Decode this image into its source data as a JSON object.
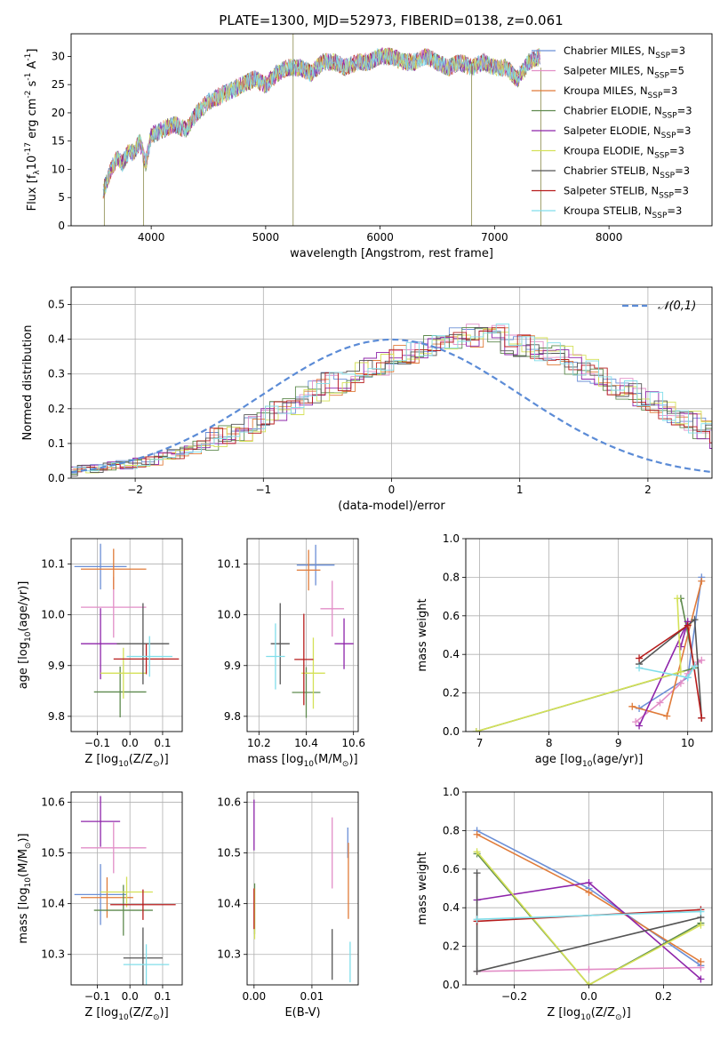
{
  "figure": {
    "title": "PLATE=1300, MJD=52973, FIBERID=0138, z=0.061"
  },
  "chart_data": [
    {
      "type": "line",
      "panel": "spectrum",
      "xlabel": "wavelength [Angstrom, rest frame]",
      "ylabel": "Flux [f$_\\lambda$10$^{-17}$ erg cm$^{-2}$ s$^{-1}$ A$^{-1}$]",
      "xlim": [
        3300,
        8900
      ],
      "ylim": [
        0,
        34
      ],
      "xticks": [
        4000,
        5000,
        6000,
        7000,
        8000
      ],
      "yticks": [
        0,
        5,
        10,
        15,
        20,
        25,
        30
      ],
      "grid": false,
      "legend": "upper-right",
      "envelope": {
        "x": [
          3580,
          3650,
          3700,
          3750,
          3800,
          3850,
          3900,
          3950,
          4000,
          4100,
          4200,
          4300,
          4400,
          4500,
          4600,
          4700,
          4800,
          4900,
          5000,
          5100,
          5200,
          5300,
          5400,
          5500,
          5600,
          5700,
          5800,
          5900,
          6000,
          6100,
          6200,
          6300,
          6400,
          6500,
          6600,
          6700,
          6800,
          6900,
          7000,
          7100,
          7200,
          7300,
          7400
        ],
        "y": [
          6,
          10,
          12,
          11,
          13,
          13,
          15,
          11,
          16,
          17,
          18,
          17,
          20,
          22,
          23,
          24,
          25,
          26,
          25,
          27,
          28,
          28,
          27,
          29,
          29,
          28,
          29,
          29,
          30,
          30,
          29,
          29,
          30,
          29,
          28,
          29,
          28,
          29,
          28,
          28,
          26,
          29,
          30
        ]
      },
      "series": [
        {
          "name": "Chabrier MILES, N$_{SSP}$=3",
          "color": "#6b8fd6"
        },
        {
          "name": "Salpeter MILES, N$_{SSP}$=5",
          "color": "#e28ec7"
        },
        {
          "name": "Kroupa MILES, N$_{SSP}$=3",
          "color": "#e07b39"
        },
        {
          "name": "Chabrier ELODIE, N$_{SSP}$=3",
          "color": "#5e8a4e"
        },
        {
          "name": "Salpeter ELODIE, N$_{SSP}$=3",
          "color": "#8e24aa"
        },
        {
          "name": "Kroupa ELODIE, N$_{SSP}$=3",
          "color": "#d4e157"
        },
        {
          "name": "Chabrier STELIB, N$_{SSP}$=3",
          "color": "#555555"
        },
        {
          "name": "Salpeter STELIB, N$_{SSP}$=3",
          "color": "#b71c1c"
        },
        {
          "name": "Kroupa STELIB, N$_{SSP}$=3",
          "color": "#80deea"
        }
      ]
    },
    {
      "type": "line",
      "panel": "residual-histogram",
      "xlabel": "(data-model)/error",
      "ylabel": "Normed distribution",
      "xlim": [
        -2.5,
        2.5
      ],
      "ylim": [
        0,
        0.55
      ],
      "xticks": [
        -2,
        -1,
        0,
        1,
        2
      ],
      "yticks": [
        0.0,
        0.1,
        0.2,
        0.3,
        0.4,
        0.5
      ],
      "grid": true,
      "legend": "upper-right",
      "reference": {
        "name": "$\\mathcal{N}(0,1)$",
        "mean": 0,
        "sigma": 1,
        "color": "#5b8bd6"
      },
      "bin_width": 0.1,
      "base_values": [
        0.02,
        0.025,
        0.03,
        0.035,
        0.04,
        0.045,
        0.05,
        0.06,
        0.07,
        0.08,
        0.095,
        0.11,
        0.12,
        0.14,
        0.16,
        0.18,
        0.19,
        0.21,
        0.23,
        0.25,
        0.27,
        0.28,
        0.3,
        0.32,
        0.33,
        0.35,
        0.36,
        0.37,
        0.38,
        0.39,
        0.4,
        0.41,
        0.4,
        0.41,
        0.39,
        0.38,
        0.37,
        0.36,
        0.35,
        0.33,
        0.31,
        0.29,
        0.27,
        0.26,
        0.24,
        0.22,
        0.2,
        0.18,
        0.16,
        0.14,
        0.12,
        0.11,
        0.09,
        0.08,
        0.07,
        0.06,
        0.05,
        0.045,
        0.04,
        0.035,
        0.03,
        0.025,
        0.02,
        0.02,
        0.015,
        0.015,
        0.012,
        0.01,
        0.01,
        0.008,
        0.007,
        0.006
      ]
    },
    {
      "type": "scatter",
      "panel": "age-vs-Z",
      "xlabel": "Z [log$_{10}$(Z/Z$_\\odot$)]",
      "ylabel": "age  [log$_{10}$(age/yr)]",
      "xlim": [
        -0.18,
        0.16
      ],
      "ylim": [
        9.77,
        10.15
      ],
      "xticks": [
        -0.1,
        0.0,
        0.1
      ],
      "yticks": [
        9.8,
        9.9,
        10.0,
        10.1
      ],
      "grid": true,
      "points": [
        {
          "series": 0,
          "x": -0.09,
          "y": 10.095,
          "xerr": 0.08,
          "yerr": 0.045
        },
        {
          "series": 1,
          "x": -0.05,
          "y": 10.015,
          "xerr": 0.1,
          "yerr": 0.06
        },
        {
          "series": 2,
          "x": -0.05,
          "y": 10.09,
          "xerr": 0.1,
          "yerr": 0.04
        },
        {
          "series": 3,
          "x": -0.03,
          "y": 9.848,
          "xerr": 0.08,
          "yerr": 0.05
        },
        {
          "series": 4,
          "x": -0.09,
          "y": 9.943,
          "xerr": 0.06,
          "yerr": 0.07
        },
        {
          "series": 5,
          "x": -0.02,
          "y": 9.885,
          "xerr": 0.07,
          "yerr": 0.05
        },
        {
          "series": 6,
          "x": 0.04,
          "y": 9.943,
          "xerr": 0.08,
          "yerr": 0.08
        },
        {
          "series": 7,
          "x": 0.05,
          "y": 9.913,
          "xerr": 0.1,
          "yerr": 0.03
        },
        {
          "series": 8,
          "x": 0.06,
          "y": 9.918,
          "xerr": 0.07,
          "yerr": 0.04
        }
      ]
    },
    {
      "type": "scatter",
      "panel": "age-vs-mass",
      "xlabel": "mass [log$_{10}$(M/M$_\\odot$)]",
      "ylabel": "",
      "xlim": [
        10.15,
        10.62
      ],
      "ylim": [
        9.77,
        10.15
      ],
      "xticks": [
        10.2,
        10.4,
        10.6
      ],
      "yticks": [
        9.8,
        9.9,
        10.0,
        10.1
      ],
      "grid": true,
      "points": [
        {
          "series": 0,
          "x": 10.44,
          "y": 10.098,
          "xerr": 0.08,
          "yerr": 0.04
        },
        {
          "series": 1,
          "x": 10.51,
          "y": 10.012,
          "xerr": 0.05,
          "yerr": 0.055
        },
        {
          "series": 2,
          "x": 10.41,
          "y": 10.088,
          "xerr": 0.05,
          "yerr": 0.04
        },
        {
          "series": 3,
          "x": 10.4,
          "y": 9.847,
          "xerr": 0.06,
          "yerr": 0.05
        },
        {
          "series": 4,
          "x": 10.56,
          "y": 9.943,
          "xerr": 0.04,
          "yerr": 0.05
        },
        {
          "series": 5,
          "x": 10.43,
          "y": 9.885,
          "xerr": 0.05,
          "yerr": 0.07
        },
        {
          "series": 6,
          "x": 10.29,
          "y": 9.943,
          "xerr": 0.04,
          "yerr": 0.08
        },
        {
          "series": 7,
          "x": 10.39,
          "y": 9.912,
          "xerr": 0.04,
          "yerr": 0.09
        },
        {
          "series": 8,
          "x": 10.27,
          "y": 9.918,
          "xerr": 0.04,
          "yerr": 0.065
        }
      ]
    },
    {
      "type": "line",
      "panel": "mass-weight-vs-age",
      "xlabel": "age  [log$_{10}$(age/yr)]",
      "ylabel": "mass weight",
      "xlim": [
        6.8,
        10.35
      ],
      "ylim": [
        0,
        1.0
      ],
      "xticks": [
        7,
        8,
        9,
        10
      ],
      "yticks": [
        0.0,
        0.2,
        0.4,
        0.6,
        0.8,
        1.0
      ],
      "grid": true,
      "series": [
        {
          "series": 0,
          "x": [
            9.3,
            10.0,
            10.2
          ],
          "y": [
            0.12,
            0.28,
            0.8
          ]
        },
        {
          "series": 1,
          "x": [
            9.25,
            9.6,
            9.9,
            10.0,
            10.15,
            10.2
          ],
          "y": [
            0.05,
            0.15,
            0.25,
            0.3,
            0.36,
            0.37
          ]
        },
        {
          "series": 2,
          "x": [
            9.2,
            9.7,
            10.2
          ],
          "y": [
            0.13,
            0.08,
            0.78
          ]
        },
        {
          "series": 3,
          "x": [
            6.95,
            10.1,
            9.9
          ],
          "y": [
            0.0,
            0.33,
            0.69
          ]
        },
        {
          "series": 4,
          "x": [
            9.3,
            10.0,
            9.9
          ],
          "y": [
            0.03,
            0.57,
            0.44
          ]
        },
        {
          "series": 5,
          "x": [
            6.95,
            9.9,
            9.85
          ],
          "y": [
            0.0,
            0.31,
            0.69
          ]
        },
        {
          "series": 6,
          "x": [
            9.3,
            10.1,
            10.2
          ],
          "y": [
            0.35,
            0.58,
            0.07
          ]
        },
        {
          "series": 7,
          "x": [
            9.3,
            10.0,
            10.2
          ],
          "y": [
            0.38,
            0.55,
            0.07
          ]
        },
        {
          "series": 8,
          "x": [
            9.3,
            10.0,
            10.1
          ],
          "y": [
            0.33,
            0.28,
            0.34
          ]
        }
      ]
    },
    {
      "type": "scatter",
      "panel": "mass-vs-Z",
      "xlabel": "Z [log$_{10}$(Z/Z$_\\odot$)]",
      "ylabel": "mass [log$_{10}$(M/M$_\\odot$)]",
      "xlim": [
        -0.18,
        0.16
      ],
      "ylim": [
        10.24,
        10.62
      ],
      "xticks": [
        -0.1,
        0.0,
        0.1
      ],
      "yticks": [
        10.3,
        10.4,
        10.5,
        10.6
      ],
      "grid": true,
      "points": [
        {
          "series": 0,
          "x": -0.09,
          "y": 10.418,
          "xerr": 0.08,
          "yerr": 0.06
        },
        {
          "series": 1,
          "x": -0.05,
          "y": 10.51,
          "xerr": 0.1,
          "yerr": 0.05
        },
        {
          "series": 2,
          "x": -0.07,
          "y": 10.412,
          "xerr": 0.08,
          "yerr": 0.04
        },
        {
          "series": 3,
          "x": -0.02,
          "y": 10.387,
          "xerr": 0.09,
          "yerr": 0.05
        },
        {
          "series": 4,
          "x": -0.09,
          "y": 10.562,
          "xerr": 0.06,
          "yerr": 0.05
        },
        {
          "series": 5,
          "x": -0.01,
          "y": 10.423,
          "xerr": 0.08,
          "yerr": 0.03
        },
        {
          "series": 6,
          "x": 0.04,
          "y": 10.293,
          "xerr": 0.06,
          "yerr": 0.06
        },
        {
          "series": 7,
          "x": 0.04,
          "y": 10.398,
          "xerr": 0.1,
          "yerr": 0.03
        },
        {
          "series": 8,
          "x": 0.05,
          "y": 10.28,
          "xerr": 0.07,
          "yerr": 0.04
        }
      ]
    },
    {
      "type": "scatter",
      "panel": "mass-vs-ebv",
      "xlabel": "E(B-V)",
      "ylabel": "",
      "xlim": [
        -0.0012,
        0.018
      ],
      "ylim": [
        10.24,
        10.62
      ],
      "xticks": [
        0.0,
        0.01
      ],
      "yticks": [
        10.3,
        10.4,
        10.5,
        10.6
      ],
      "grid": true,
      "points": [
        {
          "series": 0,
          "x": 0.0162,
          "y": 10.52,
          "xerr": 0,
          "yerr": 0.03
        },
        {
          "series": 1,
          "x": 0.0135,
          "y": 10.5,
          "xerr": 0,
          "yerr": 0.07
        },
        {
          "series": 2,
          "x": 0.0163,
          "y": 10.445,
          "xerr": 0,
          "yerr": 0.075
        },
        {
          "series": 3,
          "x": 0.0001,
          "y": 10.39,
          "xerr": 0,
          "yerr": 0.05
        },
        {
          "series": 4,
          "x": 0.0,
          "y": 10.555,
          "xerr": 0,
          "yerr": 0.05
        },
        {
          "series": 5,
          "x": 0.0001,
          "y": 10.38,
          "xerr": 0,
          "yerr": 0.05
        },
        {
          "series": 6,
          "x": 0.0135,
          "y": 10.3,
          "xerr": 0,
          "yerr": 0.05
        },
        {
          "series": 7,
          "x": 0.0,
          "y": 10.39,
          "xerr": 0,
          "yerr": 0.04
        },
        {
          "series": 8,
          "x": 0.0166,
          "y": 10.285,
          "xerr": 0,
          "yerr": 0.04
        }
      ]
    },
    {
      "type": "line",
      "panel": "mass-weight-vs-Z",
      "xlabel": "Z [log$_{10}$(Z/Z$_\\odot$)]",
      "ylabel": "mass weight",
      "xlim": [
        -0.33,
        0.33
      ],
      "ylim": [
        0,
        1.0
      ],
      "xticks": [
        -0.2,
        0.0,
        0.2
      ],
      "yticks": [
        0.0,
        0.2,
        0.4,
        0.6,
        0.8,
        1.0
      ],
      "grid": true,
      "series": [
        {
          "series": 0,
          "x": [
            -0.3,
            0.0,
            0.3
          ],
          "y": [
            0.8,
            0.5,
            0.1
          ]
        },
        {
          "series": 1,
          "x": [
            -0.3,
            0.0,
            0.3
          ],
          "y": [
            0.07,
            0.08,
            0.09
          ]
        },
        {
          "series": 2,
          "x": [
            -0.3,
            0.0,
            0.3
          ],
          "y": [
            0.78,
            0.48,
            0.12
          ]
        },
        {
          "series": 3,
          "x": [
            -0.3,
            0.0,
            0.3
          ],
          "y": [
            0.68,
            0.0,
            0.32
          ]
        },
        {
          "series": 4,
          "x": [
            -0.3,
            0.0,
            0.3
          ],
          "y": [
            0.44,
            0.53,
            0.03
          ]
        },
        {
          "series": 5,
          "x": [
            -0.3,
            0.0,
            0.3
          ],
          "y": [
            0.69,
            0.0,
            0.31
          ]
        },
        {
          "series": 6,
          "x": [
            -0.3,
            -0.3,
            0.3
          ],
          "y": [
            0.58,
            0.07,
            0.35
          ]
        },
        {
          "series": 7,
          "x": [
            -0.3,
            0.3
          ],
          "y": [
            0.33,
            0.39
          ]
        },
        {
          "series": 8,
          "x": [
            -0.3,
            0.3
          ],
          "y": [
            0.34,
            0.38
          ]
        }
      ]
    }
  ]
}
